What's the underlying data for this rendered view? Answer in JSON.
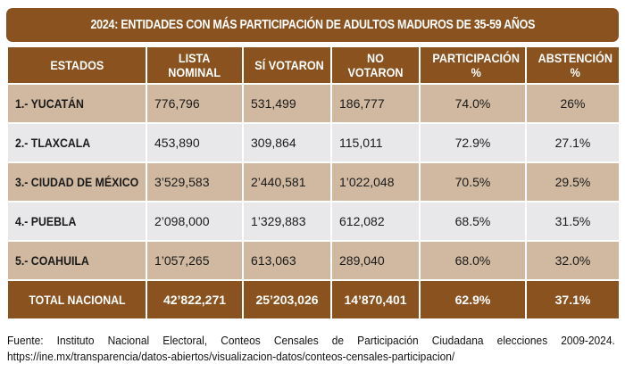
{
  "title": "2024: ENTIDADES CON MÁS PARTICIPACIÓN DE ADULTOS MADUROS DE 35-59 AÑOS",
  "table": {
    "headers": {
      "estados": "ESTADOS",
      "lista_nominal": [
        "LISTA",
        "NOMINAL"
      ],
      "si_votaron": "SÍ VOTARON",
      "no_votaron": [
        "NO",
        "VOTARON"
      ],
      "participacion": [
        "PARTICIPACIÓN",
        "%"
      ],
      "abstencion": [
        "ABSTENCIÓN",
        "%"
      ]
    },
    "rows": [
      {
        "estado": "1.- YUCATÁN",
        "lista_nominal": "776,796",
        "si_votaron": "531,499",
        "no_votaron": "186,777",
        "participacion": "74.0%",
        "abstencion": "26%"
      },
      {
        "estado": "2.- TLAXCALA",
        "lista_nominal": "453,890",
        "si_votaron": "309,864",
        "no_votaron": "115,011",
        "participacion": "72.9%",
        "abstencion": "27.1%"
      },
      {
        "estado": "3.- CIUDAD DE MÉXICO",
        "lista_nominal": "3’529,583",
        "si_votaron": "2’440,581",
        "no_votaron": "1’022,048",
        "participacion": "70.5%",
        "abstencion": "29.5%"
      },
      {
        "estado": "4.- PUEBLA",
        "lista_nominal": "2’098,000",
        "si_votaron": "1’329,883",
        "no_votaron": "612,082",
        "participacion": "68.5%",
        "abstencion": "31.5%"
      },
      {
        "estado": "5.- COAHUILA",
        "lista_nominal": "1’057,265",
        "si_votaron": "613,063",
        "no_votaron": "289,040",
        "participacion": "68.0%",
        "abstencion": "32.0%"
      }
    ],
    "total": {
      "estado": "TOTAL NACIONAL",
      "lista_nominal": "42’822,271",
      "si_votaron": "25’203,026",
      "no_votaron": "14’870,401",
      "participacion": "62.9%",
      "abstencion": "37.1%"
    }
  },
  "footer": {
    "source": "Fuente: Instituto Nacional Electoral, Conteos Censales de Participación Ciudadana elecciones 2009-2024.",
    "url": "https://ine.mx/transparencia/datos-abiertos/visualizacion-datos/conteos-censales-participacion/"
  },
  "colors": {
    "header_brown": "#8a521f",
    "row_tan": "#d0b9a0",
    "row_gray": "#e8e8ea"
  }
}
